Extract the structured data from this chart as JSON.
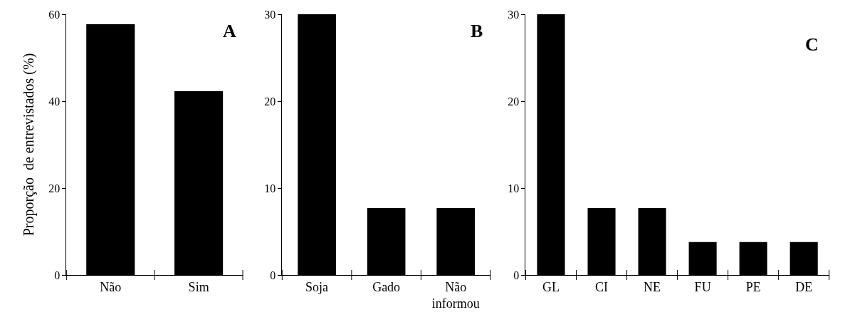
{
  "chart_data": [
    {
      "type": "bar",
      "title": "A",
      "ylabel": "Proporção  de entrevistados (%)",
      "categories": [
        "Não",
        "Sim"
      ],
      "values": [
        57.7,
        42.3
      ],
      "color": "#000000",
      "ylim": [
        0,
        60
      ],
      "yticks": [
        0,
        20,
        40,
        60
      ]
    },
    {
      "type": "bar",
      "title": "B",
      "categories": [
        "Soja",
        "Gado",
        "Não informou"
      ],
      "values": [
        30,
        7.7,
        7.7
      ],
      "color": "#000000",
      "ylim": [
        0,
        30
      ],
      "yticks": [
        0,
        10,
        20,
        30
      ]
    },
    {
      "type": "bar",
      "title": "C",
      "categories": [
        "GL",
        "CI",
        "NE",
        "FU",
        "PE",
        "DE"
      ],
      "values": [
        30,
        7.7,
        7.7,
        3.8,
        3.8,
        3.8
      ],
      "color": "#000000",
      "ylim": [
        0,
        30
      ],
      "yticks": [
        0,
        10,
        20,
        30
      ]
    }
  ]
}
